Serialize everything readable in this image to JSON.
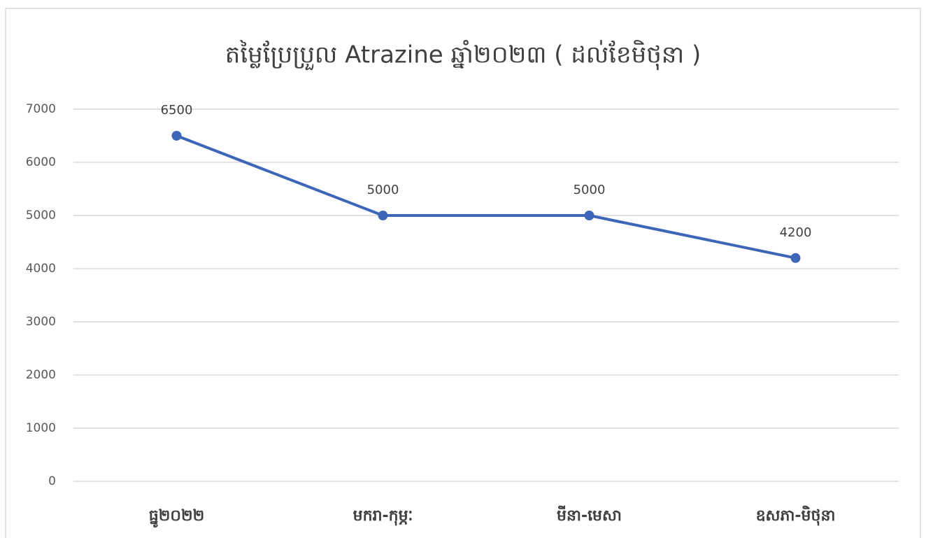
{
  "chart_data": {
    "type": "line",
    "title": "តម្លៃប្រែប្រួល Atrazine ឆ្នាំ២០២៣ ( ដល់ខែមិថុនា )",
    "categories": [
      "ធ្នូ២០២២",
      "មករា-កុម្ភៈ",
      "មីនា-មេសា",
      "ឧសភា-មិថុនា"
    ],
    "series": [
      {
        "name": "Atrazine",
        "color": "#3e66b8",
        "values": [
          6500,
          5000,
          5000,
          4200
        ]
      }
    ],
    "ylim": [
      0,
      7000
    ],
    "yticks": [
      0,
      1000,
      2000,
      3000,
      4000,
      5000,
      6000,
      7000
    ],
    "grid": true,
    "data_labels": true,
    "legend": false
  }
}
